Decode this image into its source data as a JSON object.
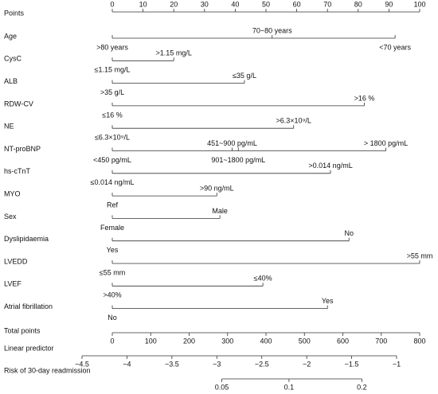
{
  "chart_data": {
    "type": "nomogram",
    "points_axis": {
      "label": "Points",
      "xlim": [
        0,
        100
      ],
      "xticks": [
        0,
        10,
        20,
        30,
        40,
        50,
        60,
        70,
        80,
        90,
        100
      ]
    },
    "variables": [
      {
        "name": "Age",
        "levels": [
          ">80 years",
          "70~80 years",
          "<70 years"
        ],
        "values": [
          0,
          52,
          92
        ]
      },
      {
        "name": "CysC",
        "levels": [
          "≤1.15 mg/L",
          ">1.15 mg/L"
        ],
        "values": [
          0,
          20
        ]
      },
      {
        "name": "ALB",
        "levels": [
          ">35 g/L",
          "≤35 g/L"
        ],
        "values": [
          0,
          43
        ]
      },
      {
        "name": "RDW-CV",
        "levels": [
          "≤16 %",
          ">16 %"
        ],
        "values": [
          0,
          82
        ]
      },
      {
        "name": "NE",
        "levels": [
          "≤6.3×10⁹/L",
          ">6.3×10⁹/L"
        ],
        "values": [
          0,
          59
        ]
      },
      {
        "name": "NT-proBNP",
        "levels": [
          "<450 pg/mL",
          "451~900 pg/mL",
          "901~1800 pg/mL",
          "> 1800 pg/mL"
        ],
        "values": [
          0,
          39,
          41,
          89
        ]
      },
      {
        "name": "hs-cTnT",
        "levels": [
          "≤0.014 ng/mL",
          ">0.014 ng/mL"
        ],
        "values": [
          0,
          71
        ]
      },
      {
        "name": "MYO",
        "levels": [
          "Ref",
          ">90 ng/mL"
        ],
        "values": [
          0,
          34
        ]
      },
      {
        "name": "Sex",
        "levels": [
          "Female",
          "Male"
        ],
        "values": [
          0,
          35
        ]
      },
      {
        "name": "Dyslipidaemia",
        "levels": [
          "Yes",
          "No"
        ],
        "values": [
          0,
          77
        ]
      },
      {
        "name": "LVEDD",
        "levels": [
          "≤55 mm",
          ">55 mm"
        ],
        "values": [
          0,
          100
        ]
      },
      {
        "name": "LVEF",
        "levels": [
          ">40%",
          "≤40%"
        ],
        "values": [
          0,
          49
        ]
      },
      {
        "name": "Atrial fibrillation",
        "levels": [
          "No",
          "Yes"
        ],
        "values": [
          0,
          70
        ]
      }
    ],
    "total_points": {
      "label": "Total points",
      "xlim": [
        0,
        800
      ],
      "xticks": [
        0,
        100,
        200,
        300,
        400,
        500,
        600,
        700,
        800
      ]
    },
    "linear_predictor": {
      "label": "Linear predictor",
      "xlim": [
        -4.5,
        -1
      ],
      "xticks": [
        {
          "value": -4.5,
          "label": "−4.5"
        },
        {
          "value": -4,
          "label": "−4"
        },
        {
          "value": -3.5,
          "label": "−3.5"
        },
        {
          "value": -3,
          "label": "−3"
        },
        {
          "value": -2.5,
          "label": "−2.5"
        },
        {
          "value": -2,
          "label": "−2"
        },
        {
          "value": -1.5,
          "label": "−1.5"
        },
        {
          "value": -1,
          "label": "−1"
        }
      ]
    },
    "risk": {
      "label": "Risk of 30-day readmission",
      "scale": "logit",
      "xticks": [
        0.05,
        0.1,
        0.2
      ]
    }
  }
}
